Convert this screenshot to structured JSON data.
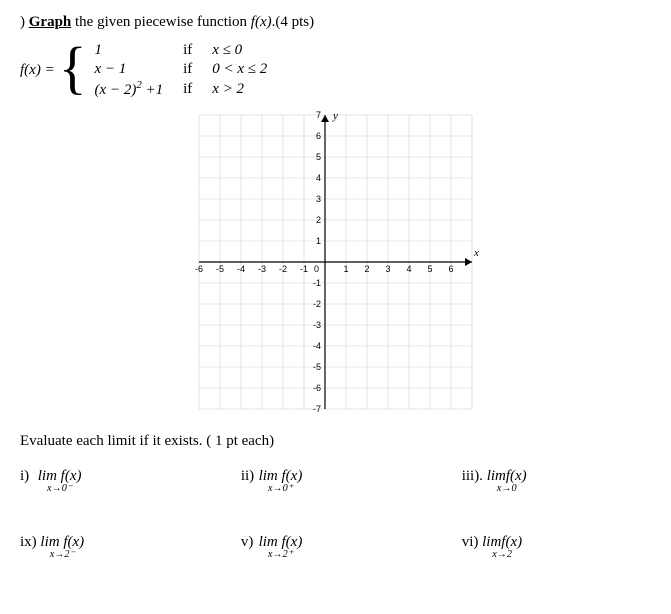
{
  "question": {
    "prefix": ") ",
    "bold": "Graph",
    "rest": " the given piecewise function ",
    "fn": "f(x)",
    "points": ".(4 pts)"
  },
  "fndef": {
    "lhs": "f(x) = ",
    "pieces": [
      {
        "expr": "1",
        "cond": "x ≤ 0"
      },
      {
        "expr": "x − 1",
        "cond": "0 < x ≤ 2"
      },
      {
        "expr": "(x − 2)² +1",
        "cond_raw": "x > 2",
        "cond": "x > 2"
      }
    ],
    "if_label": "if"
  },
  "graph": {
    "x_min": -6,
    "x_max": 7,
    "y_min": -7,
    "y_max": 7,
    "cell": 21,
    "x_ticks": [
      -6,
      -5,
      -4,
      -3,
      -2,
      -1,
      1,
      2,
      3,
      4,
      5,
      6
    ],
    "y_ticks_pos": [
      1,
      2,
      3,
      4,
      5,
      6,
      7
    ],
    "y_ticks_neg": [
      -1,
      -2,
      -3,
      -4,
      -5,
      -6,
      -7
    ],
    "origin_label": "0",
    "x_label": "x",
    "y_label": "y"
  },
  "evaluate": {
    "heading": "Evaluate each limit if it exists. ( 1 pt each)",
    "items": [
      {
        "n": "i)",
        "approach": "x→0⁻",
        "fn": "lim f(x)"
      },
      {
        "n": "ii)",
        "approach": "x→0⁺",
        "fn": "lim f(x)"
      },
      {
        "n": "iii).",
        "approach": "x→0",
        "fn": "limf(x)"
      },
      {
        "n": "ix)",
        "approach": "x→2⁻",
        "fn": "lim f(x)"
      },
      {
        "n": "v)",
        "approach": "x→2⁺",
        "fn": "lim f(x)"
      },
      {
        "n": "vi)",
        "approach": "x→2",
        "fn": "limf(x)"
      }
    ]
  }
}
